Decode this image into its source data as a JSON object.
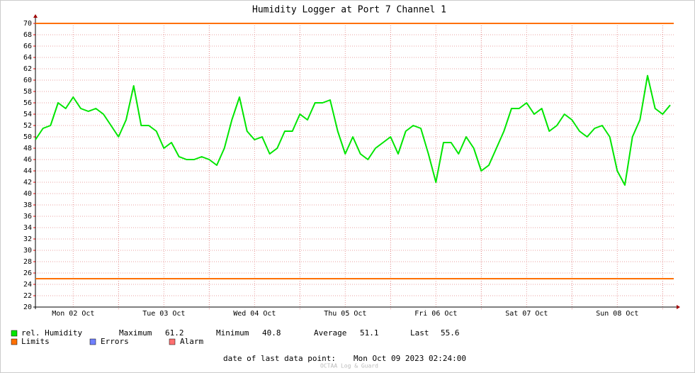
{
  "chart_data": {
    "type": "line",
    "title": "Humidity Logger at Port 7 Channel 1",
    "series": [
      {
        "name": "rel. Humidity",
        "color": "#00e600",
        "values": [
          49.5,
          51.5,
          52,
          56,
          55,
          57,
          55,
          54.5,
          55,
          54,
          52,
          50,
          53,
          59,
          52,
          52,
          51,
          48,
          49,
          46.5,
          46,
          46,
          46.5,
          46,
          45,
          48,
          53,
          57,
          51,
          49.5,
          50,
          47,
          48,
          51,
          51,
          54,
          53,
          56,
          56,
          56.5,
          51,
          47,
          50,
          47,
          46,
          48,
          49,
          50,
          47,
          51,
          52,
          51.5,
          47,
          42,
          49,
          49,
          47,
          50,
          48,
          44,
          45,
          48,
          51,
          55,
          55,
          56,
          54,
          55,
          51,
          52,
          54,
          53,
          51,
          50,
          51.5,
          52,
          50,
          44,
          41.5,
          50,
          53,
          60.8,
          55,
          54,
          55.6
        ]
      }
    ],
    "limits": {
      "name": "Limits",
      "color": "#ff7000",
      "values": [
        70,
        25
      ]
    },
    "legend_extra": [
      {
        "name": "Errors",
        "color": "#7080ff"
      },
      {
        "name": "Alarm",
        "color": "#ff7070"
      }
    ],
    "stats": [
      {
        "label": "Maximum",
        "value": 61.2
      },
      {
        "label": "Minimum",
        "value": 40.8
      },
      {
        "label": "Average",
        "value": 51.1
      },
      {
        "label": "Last",
        "value": 55.6
      }
    ],
    "xlim": [
      0,
      84
    ],
    "xticks": [
      {
        "value": 5,
        "label": "Mon 02 Oct"
      },
      {
        "value": 17,
        "label": "Tue 03 Oct"
      },
      {
        "value": 29,
        "label": "Wed 04 Oct"
      },
      {
        "value": 41,
        "label": "Thu 05 Oct"
      },
      {
        "value": 53,
        "label": "Fri 06 Oct"
      },
      {
        "value": 65,
        "label": "Sat 07 Oct"
      },
      {
        "value": 77,
        "label": "Sun 08 Oct"
      }
    ],
    "ylim": [
      20,
      70
    ],
    "yticks": [
      20,
      22,
      24,
      26,
      28,
      30,
      32,
      34,
      36,
      38,
      40,
      42,
      44,
      46,
      48,
      50,
      52,
      54,
      56,
      58,
      60,
      62,
      64,
      66,
      68,
      70
    ],
    "grid": true,
    "footer": {
      "label": "date of last data point:",
      "value": "Mon Oct 09 2023 02:24:00"
    },
    "watermark": "OCTAA Log & Guard"
  }
}
